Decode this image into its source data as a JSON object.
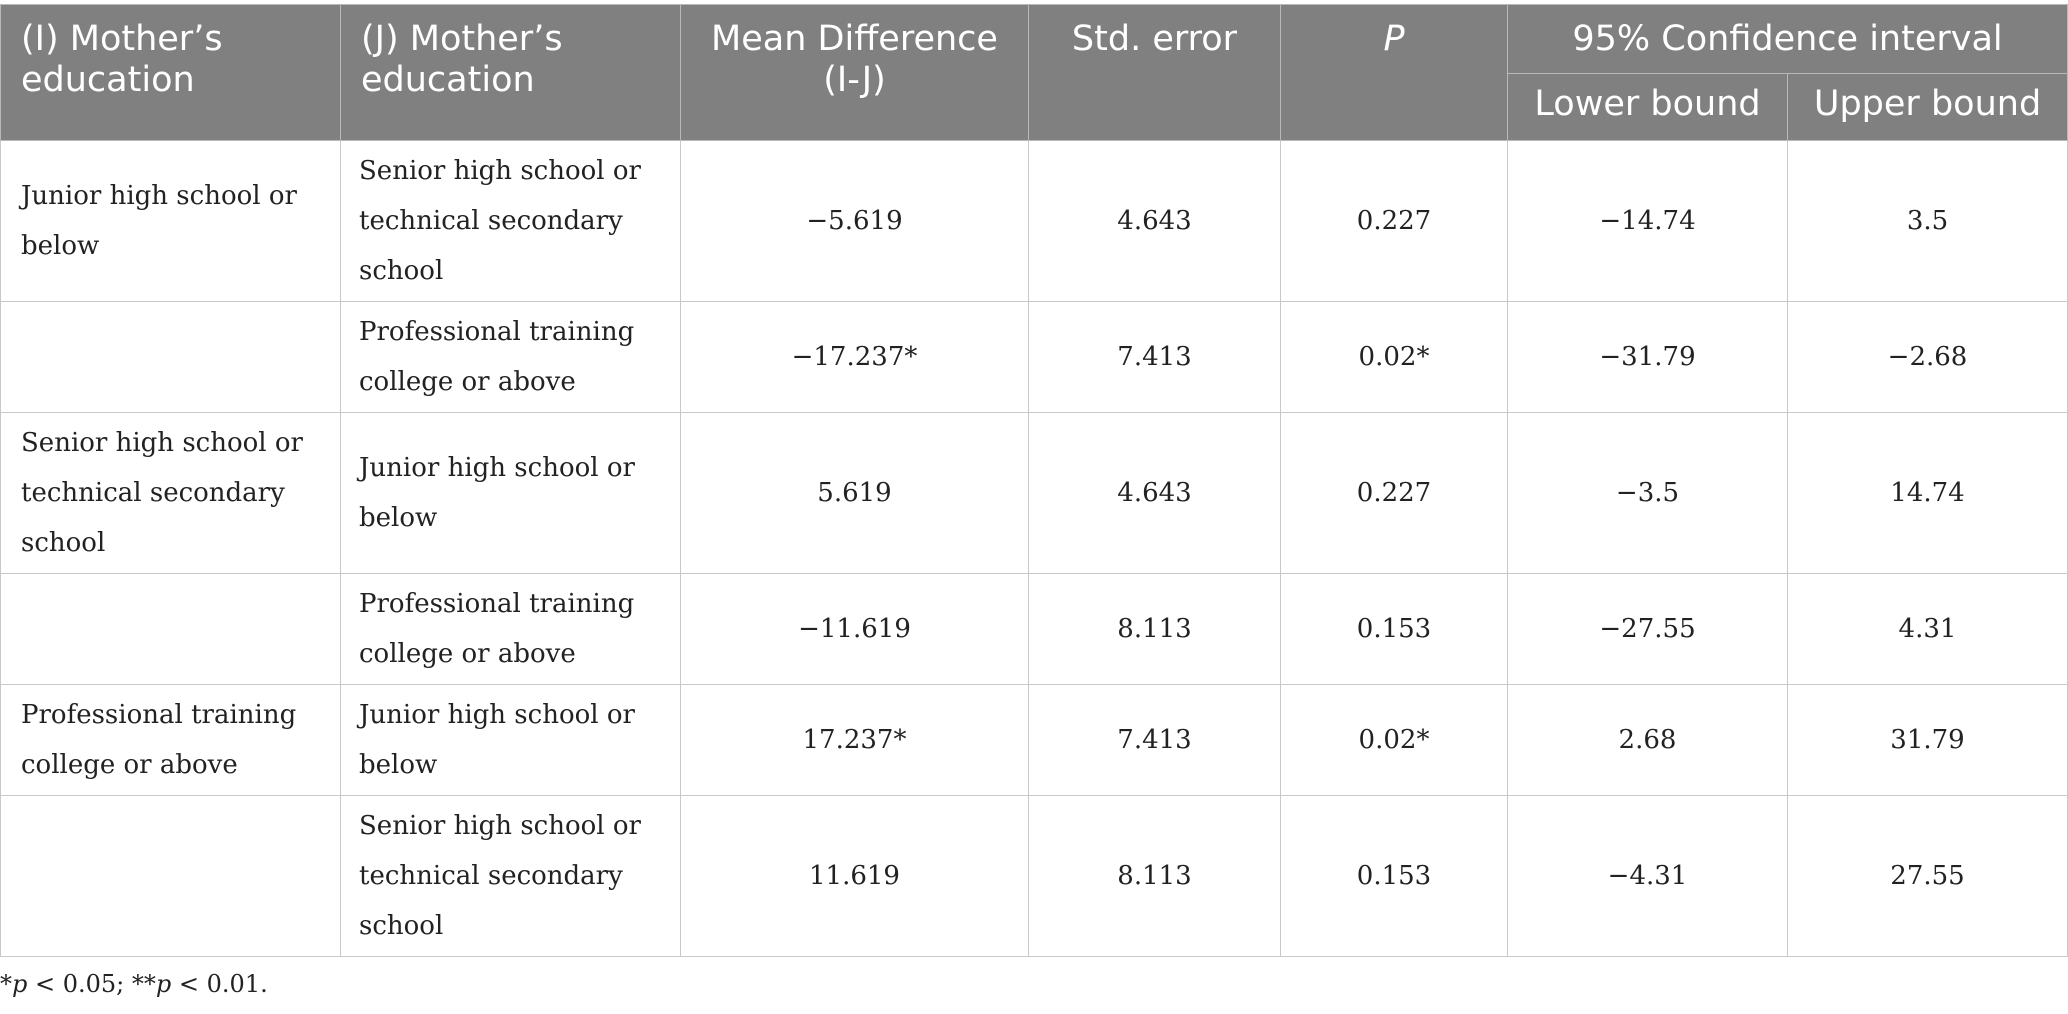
{
  "table": {
    "headers": {
      "col_i": "(I) Mother’s education",
      "col_j": "(J) Mother’s education",
      "mean_diff": "Mean Difference (I-J)",
      "std_error": "Std. error",
      "p": "P",
      "ci": "95% Confidence interval",
      "lower": "Lower bound",
      "upper": "Upper bound"
    },
    "rows": [
      {
        "i": "Junior high school or below",
        "j": "Senior high school or technical secondary school",
        "mean_diff": "−5.619",
        "std_error": "4.643",
        "p": "0.227",
        "lower": "−14.74",
        "upper": "3.5"
      },
      {
        "i": "",
        "j": "Professional training college or above",
        "mean_diff": "−17.237*",
        "std_error": "7.413",
        "p": "0.02*",
        "lower": "−31.79",
        "upper": "−2.68"
      },
      {
        "i": "Senior high school or technical secondary school",
        "j": "Junior high school or below",
        "mean_diff": "5.619",
        "std_error": "4.643",
        "p": "0.227",
        "lower": "−3.5",
        "upper": "14.74"
      },
      {
        "i": "",
        "j": "Professional training college or above",
        "mean_diff": "−11.619",
        "std_error": "8.113",
        "p": "0.153",
        "lower": "−27.55",
        "upper": "4.31"
      },
      {
        "i": "Professional training college or above",
        "j": "Junior high school or below",
        "mean_diff": "17.237*",
        "std_error": "7.413",
        "p": "0.02*",
        "lower": "2.68",
        "upper": "31.79"
      },
      {
        "i": "",
        "j": "Senior high school or technical secondary school",
        "mean_diff": "11.619",
        "std_error": "8.113",
        "p": "0.153",
        "lower": "−4.31",
        "upper": "27.55"
      }
    ]
  },
  "footnote": {
    "star1": "*",
    "p1": "p",
    "t1": " < 0.05; ",
    "star2": "**",
    "p2": "p",
    "t2": " < 0.01."
  },
  "colors": {
    "header_bg": "#7f807f",
    "header_text": "#ffffff",
    "grid": "#c8c8c8"
  }
}
